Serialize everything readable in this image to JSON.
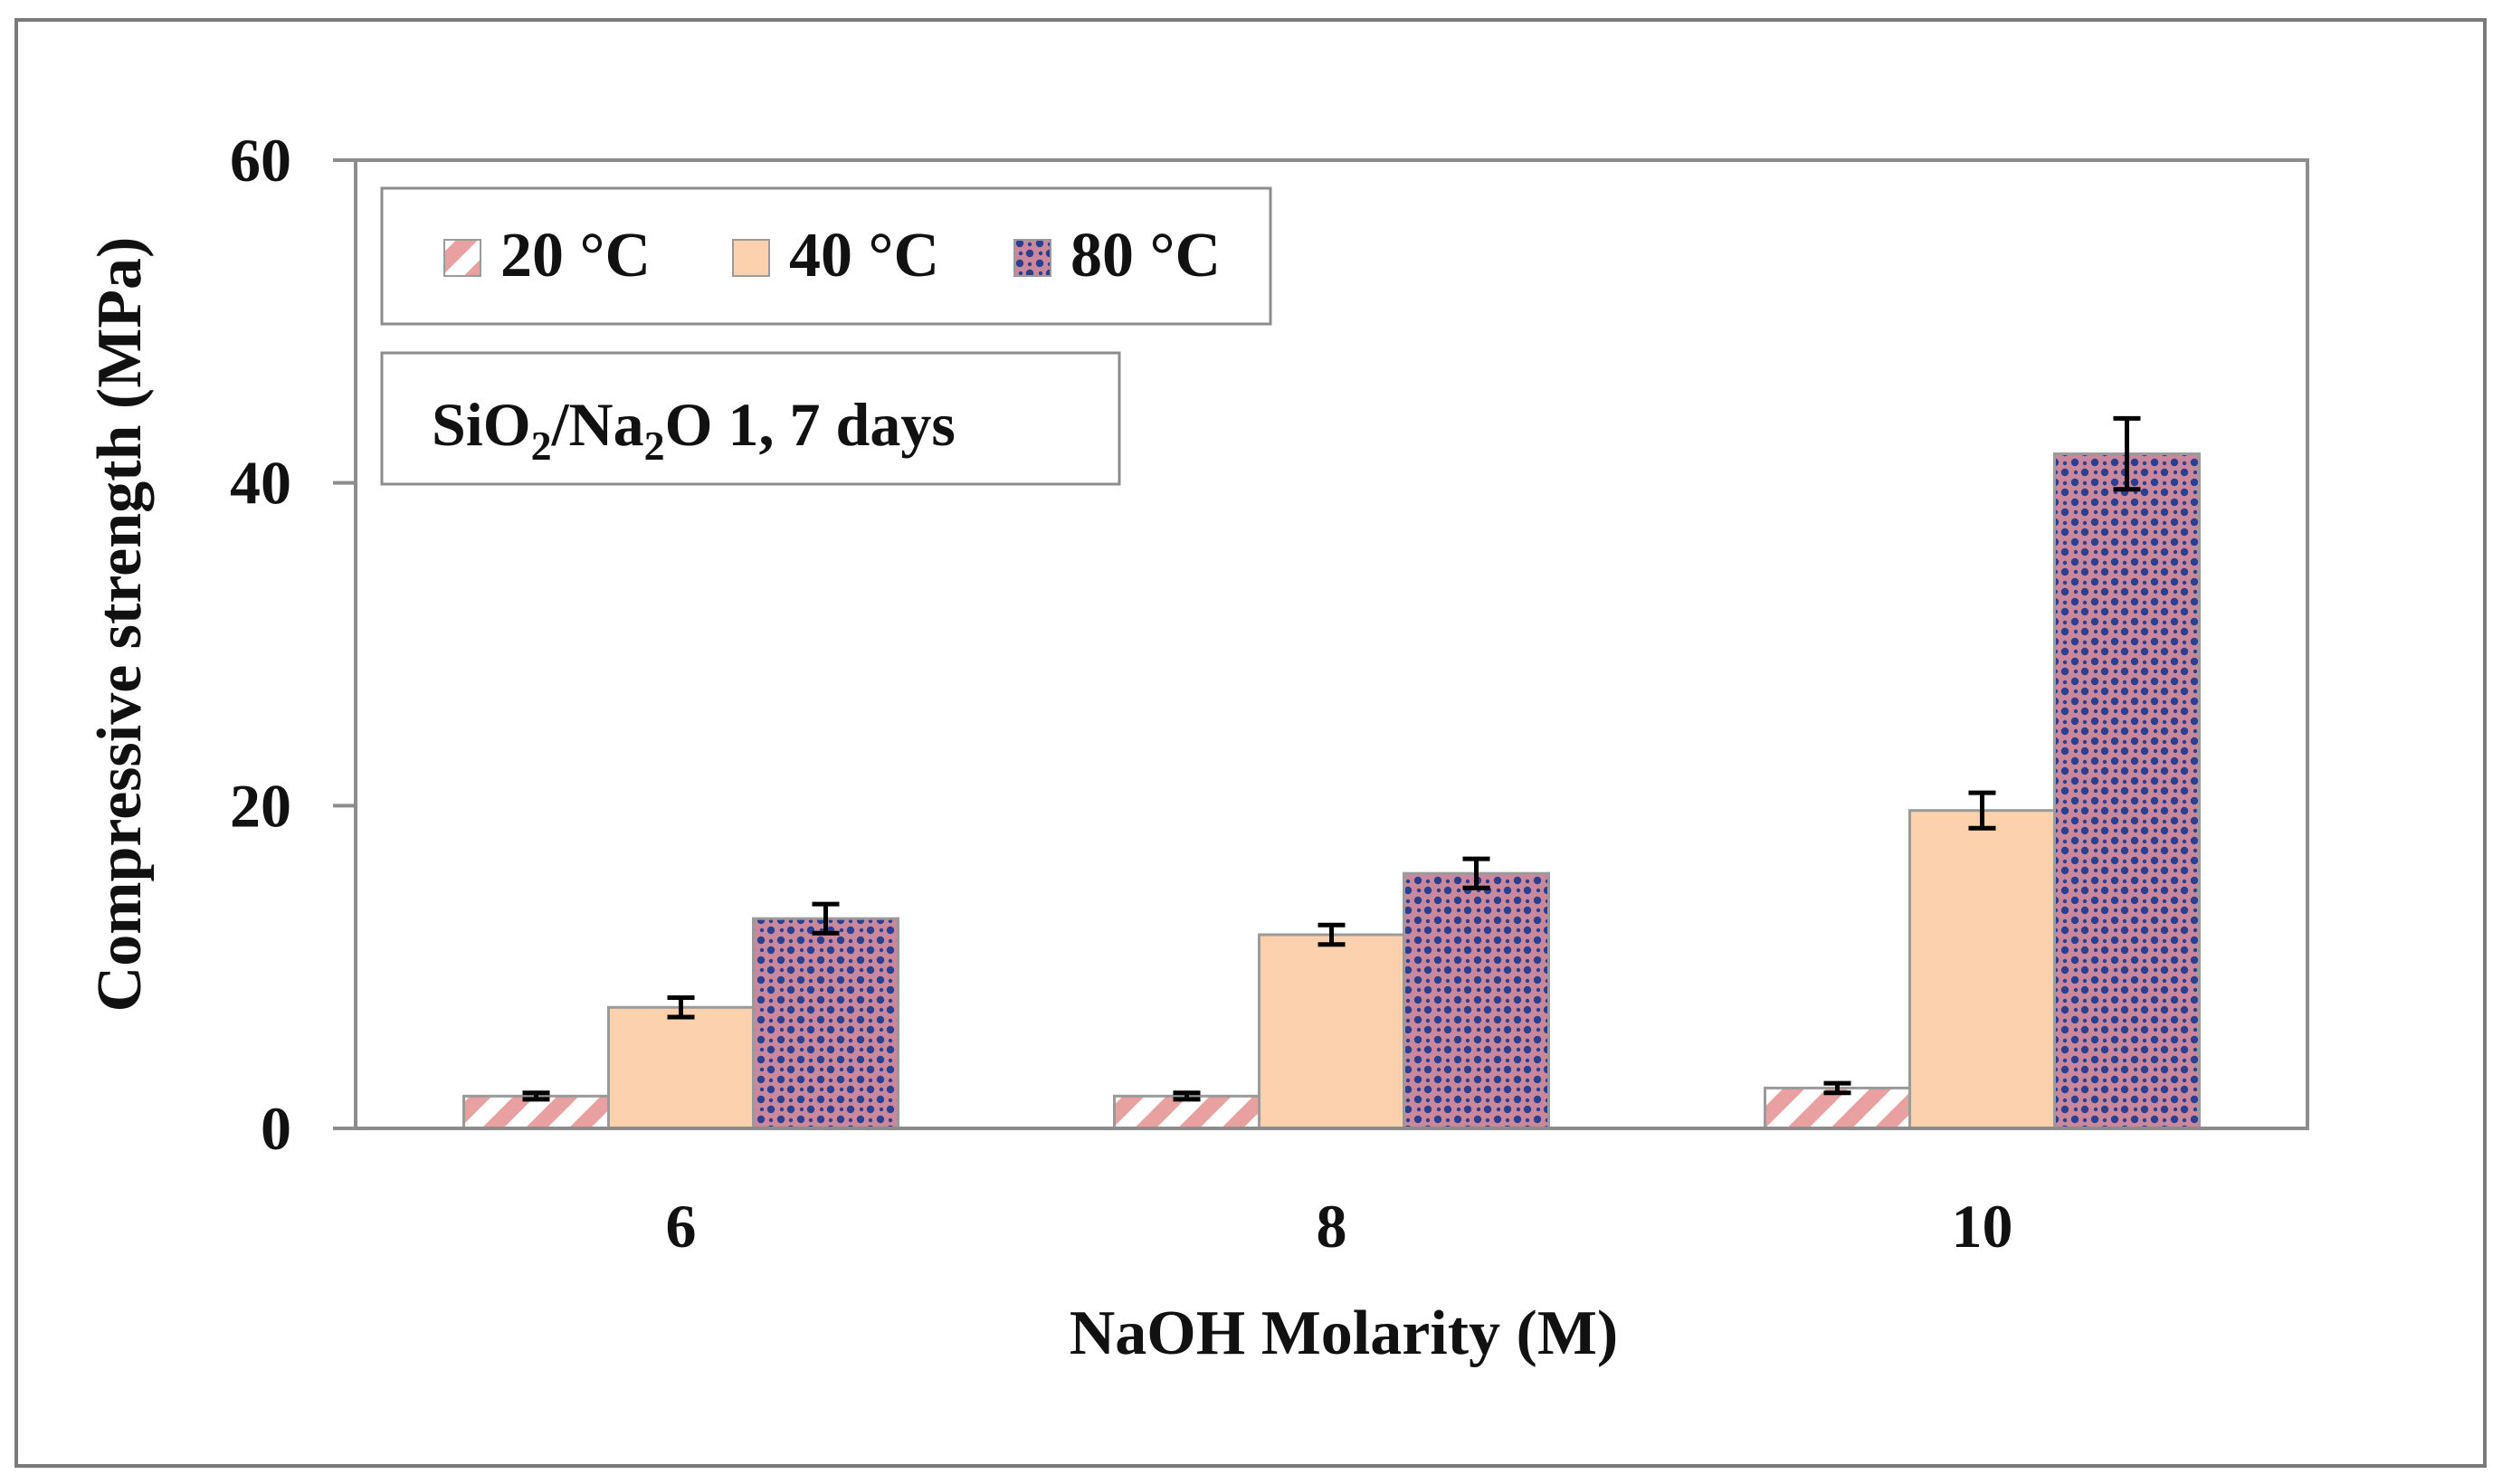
{
  "chart_data": {
    "type": "bar",
    "title": "",
    "xlabel": "NaOH Molarity (M)",
    "ylabel": "Compressive strength (MPa)",
    "categories": [
      "6",
      "8",
      "10"
    ],
    "ylim": [
      0,
      60
    ],
    "yticks": [
      0,
      20,
      40,
      60
    ],
    "grid": false,
    "legend_position": "top-left",
    "series": [
      {
        "name": "20 °C",
        "values": [
          2.0,
          2.0,
          2.5
        ],
        "errors": [
          0.2,
          0.2,
          0.3
        ],
        "color": "#e8a0a0",
        "pattern": "diagonal-stripes"
      },
      {
        "name": "40 °C",
        "values": [
          7.5,
          12.0,
          19.7
        ],
        "errors": [
          0.6,
          0.6,
          1.1
        ],
        "color": "#fbd2ad",
        "pattern": "solid"
      },
      {
        "name": "80 °C",
        "values": [
          13.0,
          15.8,
          41.8
        ],
        "errors": [
          0.9,
          0.9,
          2.2
        ],
        "color": "#2a3f8f",
        "pattern": "dots",
        "background": "#c9889c"
      }
    ],
    "annotation": {
      "prefix": "SiO",
      "sub1": "2",
      "middle": "/Na",
      "sub2": "2",
      "suffix": "O 1, 7 days"
    }
  },
  "colors": {
    "axis": "#8c8c8c",
    "bar_outline": "#9a9a9a",
    "frame": "#7a7a7a",
    "error_bar": "#000000"
  }
}
